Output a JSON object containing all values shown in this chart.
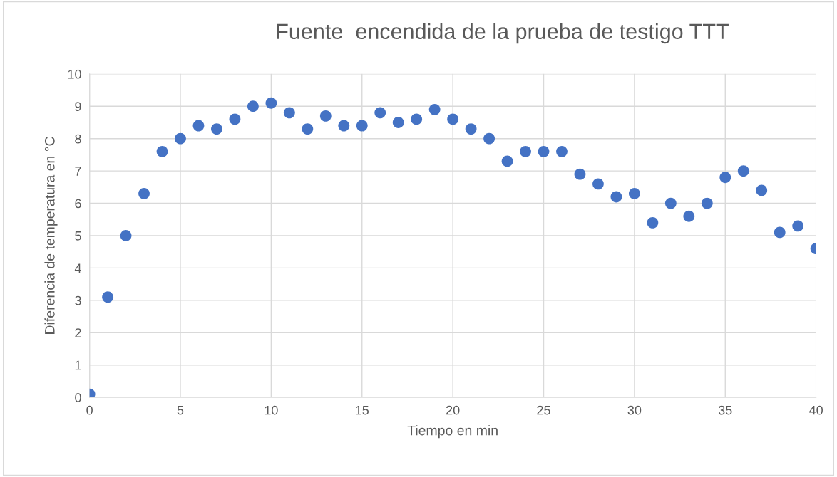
{
  "chart_data": {
    "type": "scatter",
    "title": "Fuente  encendida de la prueba de testigo TTT",
    "xlabel": "Tiempo en min",
    "ylabel": "Diferencia de temperatura en °C",
    "x": [
      0,
      1,
      2,
      3,
      4,
      5,
      6,
      7,
      8,
      9,
      10,
      11,
      12,
      13,
      14,
      15,
      16,
      17,
      18,
      19,
      20,
      21,
      22,
      23,
      24,
      25,
      26,
      27,
      28,
      29,
      30,
      31,
      32,
      33,
      34,
      35,
      36,
      37,
      38,
      39,
      40
    ],
    "series": [
      {
        "color": "#4472c4",
        "values": [
          0.1,
          3.1,
          5.0,
          6.3,
          7.6,
          8.0,
          8.4,
          8.3,
          8.6,
          9.0,
          9.1,
          8.8,
          8.3,
          8.7,
          8.4,
          8.4,
          8.8,
          8.5,
          8.6,
          8.9,
          8.6,
          8.3,
          8.0,
          7.3,
          7.6,
          7.6,
          7.6,
          6.9,
          6.6,
          6.2,
          6.3,
          5.4,
          6.0,
          5.6,
          6.0,
          6.8,
          7.0,
          6.4,
          5.1,
          5.3,
          4.6
        ]
      }
    ],
    "xlim": [
      0,
      40
    ],
    "xticks": [
      0,
      5,
      10,
      15,
      20,
      25,
      30,
      35,
      40
    ],
    "ylim": [
      0,
      10
    ],
    "yticks": [
      0,
      1,
      2,
      3,
      4,
      5,
      6,
      7,
      8,
      9,
      10
    ],
    "grid": true,
    "marker": "circle",
    "legend": false
  }
}
